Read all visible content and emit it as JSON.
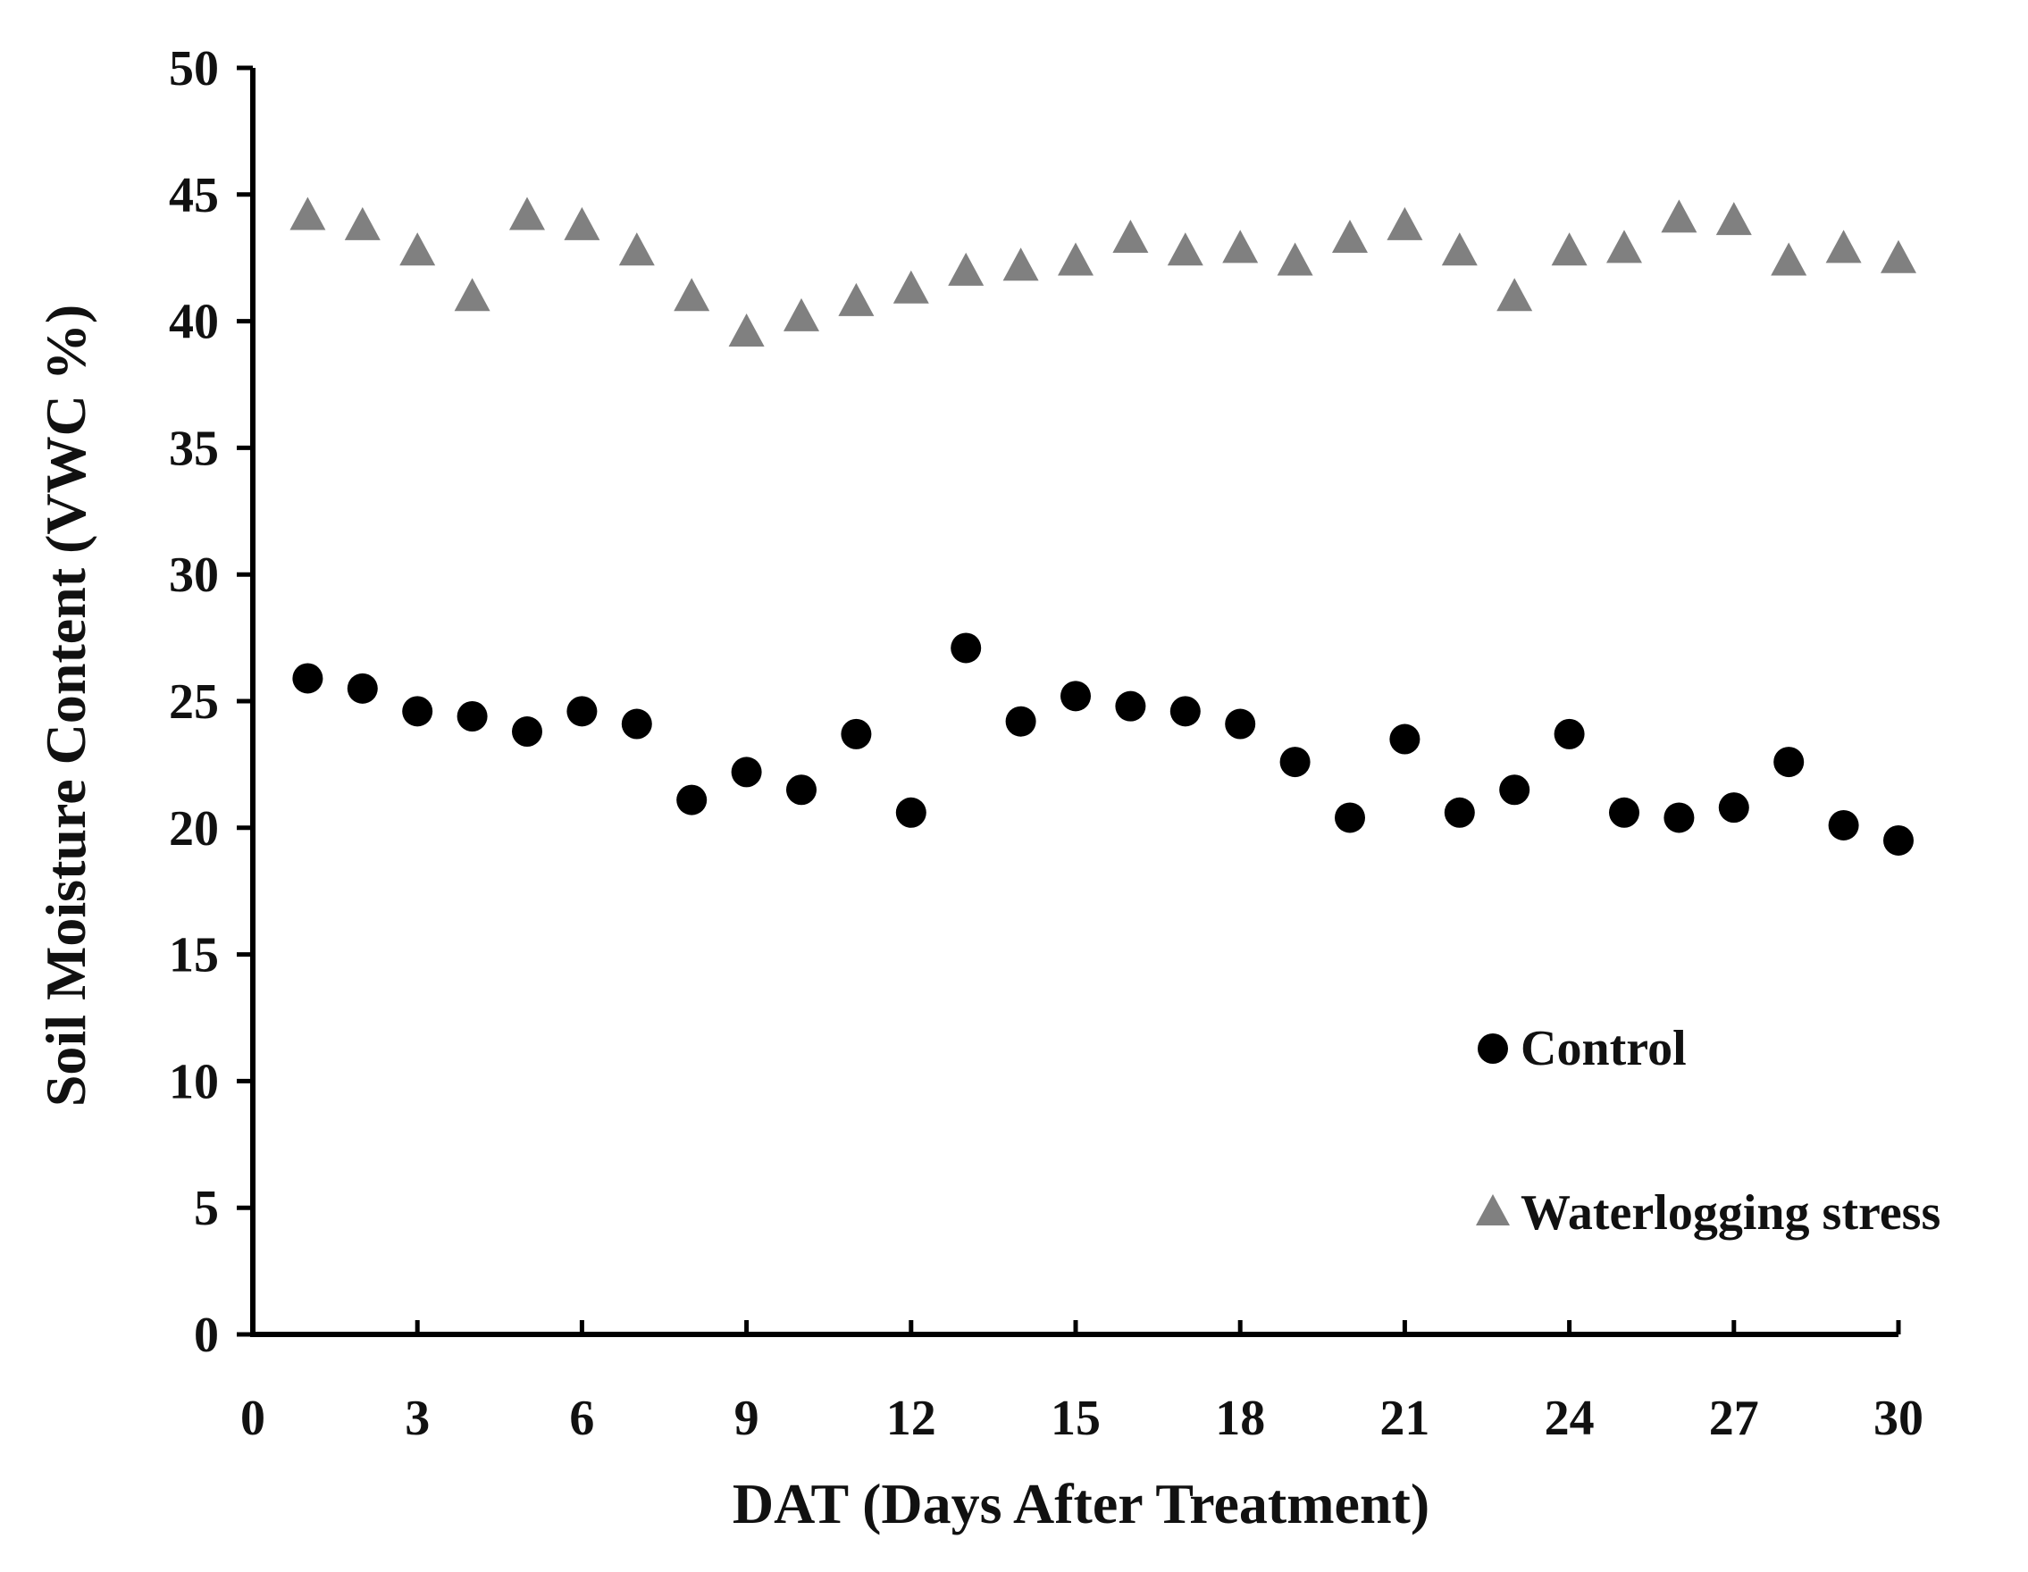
{
  "chart_data": {
    "type": "scatter",
    "title": "",
    "xlabel": "DAT (Days After Treatment)",
    "ylabel": "Soil Moisture Content (VWC %)",
    "xlim": [
      0,
      30
    ],
    "ylim": [
      0,
      50
    ],
    "xticks": [
      0,
      3,
      6,
      9,
      12,
      15,
      18,
      21,
      24,
      27,
      30
    ],
    "yticks": [
      0,
      5,
      10,
      15,
      20,
      25,
      30,
      35,
      40,
      45,
      50
    ],
    "xtick_labels": [
      "0",
      "3",
      "6",
      "9",
      "12",
      "15",
      "18",
      "21",
      "24",
      "27",
      "30"
    ],
    "ytick_labels": [
      "0",
      "5",
      "10",
      "15",
      "20",
      "25",
      "30",
      "35",
      "40",
      "45",
      "50"
    ],
    "grid": false,
    "legend_position": "bottom-right",
    "x": [
      1,
      2,
      3,
      4,
      5,
      6,
      7,
      8,
      9,
      10,
      11,
      12,
      13,
      14,
      15,
      16,
      17,
      18,
      19,
      20,
      21,
      22,
      23,
      24,
      25,
      26,
      27,
      28,
      29,
      30
    ],
    "series": [
      {
        "name": "Control",
        "marker": "circle",
        "color": "#000000",
        "values": [
          25.9,
          25.5,
          24.6,
          24.4,
          23.8,
          24.6,
          24.1,
          21.1,
          22.2,
          21.5,
          23.7,
          20.6,
          27.1,
          24.2,
          25.2,
          24.8,
          24.6,
          24.1,
          22.6,
          20.4,
          23.5,
          20.6,
          21.5,
          23.7,
          20.6,
          20.4,
          20.8,
          22.6,
          20.1,
          19.5
        ]
      },
      {
        "name": "Waterlogging stress",
        "marker": "triangle",
        "color": "#808080",
        "values": [
          44.2,
          43.8,
          42.8,
          41.0,
          44.2,
          43.8,
          42.8,
          41.0,
          39.6,
          40.2,
          40.8,
          41.3,
          42.0,
          42.2,
          42.4,
          43.3,
          42.8,
          42.9,
          42.4,
          43.3,
          43.8,
          42.8,
          41.0,
          42.8,
          42.9,
          44.1,
          44.0,
          42.4,
          42.9,
          42.5
        ]
      }
    ]
  }
}
